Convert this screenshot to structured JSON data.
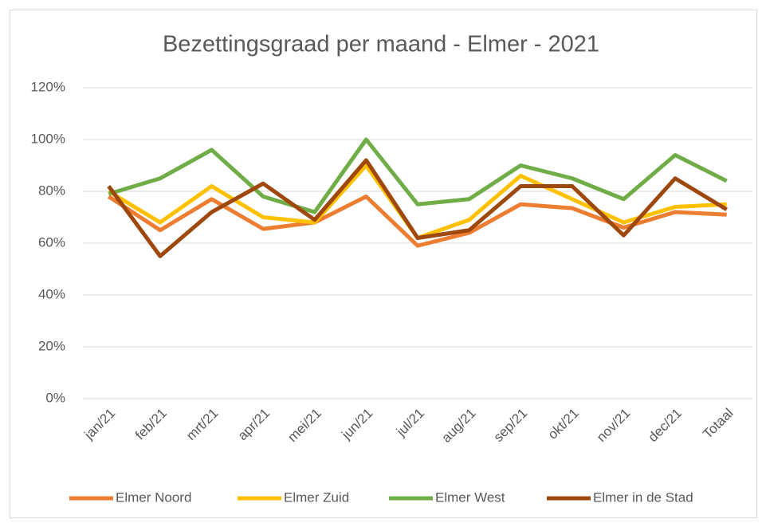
{
  "chart_data": {
    "type": "line",
    "title": "Bezettingsgraad per maand - Elmer - 2021",
    "categories": [
      "jan/21",
      "feb/21",
      "mrt/21",
      "apr/21",
      "mei/21",
      "jun/21",
      "jul/21",
      "aug/21",
      "sep/21",
      "okt/21",
      "nov/21",
      "dec/21",
      "Totaal"
    ],
    "series": [
      {
        "name": "Elmer Noord",
        "color": "#ed7d31",
        "values": [
          78,
          65,
          77,
          65.5,
          68,
          78,
          59,
          64,
          75,
          73.5,
          66,
          72,
          71
        ]
      },
      {
        "name": "Elmer Zuid",
        "color": "#ffc000",
        "values": [
          80,
          68,
          82,
          70,
          68,
          90,
          62,
          69,
          86,
          77,
          68,
          74,
          75
        ]
      },
      {
        "name": "Elmer West",
        "color": "#70ad47",
        "values": [
          79,
          85,
          96,
          78,
          72,
          100,
          75,
          77,
          90,
          85,
          77,
          94,
          84
        ]
      },
      {
        "name": "Elmer in de Stad",
        "color": "#9e480e",
        "values": [
          82,
          55,
          72,
          83,
          69,
          92,
          62,
          65,
          82,
          82,
          63,
          85,
          73
        ]
      }
    ],
    "ylim": [
      0,
      120
    ],
    "yticks": [
      {
        "value": 0,
        "label": "0%"
      },
      {
        "value": 20,
        "label": "20%"
      },
      {
        "value": 40,
        "label": "40%"
      },
      {
        "value": 60,
        "label": "60%"
      },
      {
        "value": 80,
        "label": "80%"
      },
      {
        "value": 100,
        "label": "100%"
      },
      {
        "value": 120,
        "label": "120%"
      }
    ],
    "grid": true,
    "legend": "bottom"
  }
}
